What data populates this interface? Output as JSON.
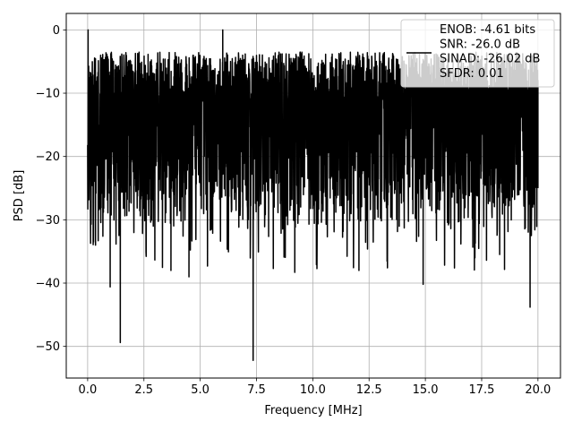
{
  "chart_data": {
    "type": "line",
    "xlabel": "Frequency [MHz]",
    "ylabel": "PSD [dB]",
    "xlim": [
      -0.95,
      21.0
    ],
    "ylim": [
      -55.0,
      2.6
    ],
    "xticks": [
      0.0,
      2.5,
      5.0,
      7.5,
      10.0,
      12.5,
      15.0,
      17.5,
      20.0
    ],
    "xtick_labels": [
      "0.0",
      "2.5",
      "5.0",
      "7.5",
      "10.0",
      "12.5",
      "15.0",
      "17.5",
      "20.0"
    ],
    "yticks": [
      0,
      -10,
      -20,
      -30,
      -40,
      -50
    ],
    "ytick_labels": [
      "0",
      "−10",
      "−20",
      "−30",
      "−40",
      "−50"
    ],
    "grid": true,
    "legend_position": "top-right",
    "series": [
      {
        "legend_lines": [
          "ENOB: -4.61 bits",
          "SNR: -26.0 dB",
          "SINAD: -26.02 dB",
          "SFDR: 0.01"
        ],
        "color": "#000000",
        "description": "noise-like PSD across 0–20 MHz, mostly between -30 and -3 dB",
        "x_range": [
          0.0,
          20.0
        ],
        "notable_points": [
          {
            "x": 0.02,
            "y": 0.0
          },
          {
            "x": 0.05,
            "y": -18
          },
          {
            "x": 0.35,
            "y": -34
          },
          {
            "x": 1.0,
            "y": -40.6
          },
          {
            "x": 1.45,
            "y": -49.4
          },
          {
            "x": 3.7,
            "y": -38
          },
          {
            "x": 4.5,
            "y": -39
          },
          {
            "x": 6.0,
            "y": 0.0
          },
          {
            "x": 7.35,
            "y": -52.2
          },
          {
            "x": 9.2,
            "y": -38.3
          },
          {
            "x": 12.05,
            "y": -38
          },
          {
            "x": 14.9,
            "y": -40.2
          },
          {
            "x": 17.2,
            "y": -36
          },
          {
            "x": 19.65,
            "y": -43.8
          },
          {
            "x": 20.0,
            "y": -25
          }
        ],
        "typical_max": -3.5,
        "typical_min": -30.0
      }
    ]
  }
}
